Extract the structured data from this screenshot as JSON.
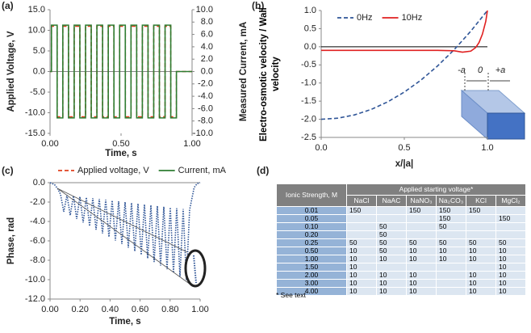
{
  "panel_labels": [
    "(a)",
    "(b)",
    "(c)",
    "(d)"
  ],
  "chart_data": [
    {
      "type": "line",
      "legend": "bottom",
      "xlabel": "Time, s",
      "ylabel": "Applied Voltage, V",
      "y2label": "Measured Current, mA",
      "x": [
        0,
        0.01,
        0.01,
        0.05,
        0.05,
        0.09,
        0.09,
        0.13,
        0.13,
        0.17,
        0.17,
        0.21,
        0.21,
        0.25,
        0.25,
        0.29,
        0.29,
        0.33,
        0.33,
        0.37,
        0.37,
        0.41,
        0.41,
        0.45,
        0.45,
        0.49,
        0.49,
        0.53,
        0.53,
        0.57,
        0.57,
        0.61,
        0.61,
        0.65,
        0.65,
        0.69,
        0.69,
        0.73,
        0.73,
        0.77,
        0.77,
        0.81,
        0.81,
        0.85,
        0.85,
        0.89,
        0.89,
        1.0
      ],
      "xlim": [
        0,
        1
      ],
      "xticks": [
        {
          "value": 0,
          "label": "0.00"
        },
        {
          "value": 0.5,
          "label": "0.50"
        },
        {
          "value": 1,
          "label": "1.00"
        }
      ],
      "ylim": [
        -15,
        15
      ],
      "yticks": [
        {
          "value": -15,
          "label": "-15.0"
        },
        {
          "value": -10,
          "label": "-10.0"
        },
        {
          "value": -5,
          "label": "-5.0"
        },
        {
          "value": 0,
          "label": "0.0"
        },
        {
          "value": 5,
          "label": "5.0"
        },
        {
          "value": 10,
          "label": "10.0"
        },
        {
          "value": 15,
          "label": "15.0"
        }
      ],
      "y2lim": [
        -10,
        10
      ],
      "y2ticks": [
        {
          "value": -10,
          "label": "-10.0"
        },
        {
          "value": -8,
          "label": "-8.0"
        },
        {
          "value": -6,
          "label": "-6.0"
        },
        {
          "value": -4,
          "label": "-4.0"
        },
        {
          "value": -2,
          "label": "-2.0"
        },
        {
          "value": 0,
          "label": "0.0"
        },
        {
          "value": 2,
          "label": "2.0"
        },
        {
          "value": 4,
          "label": "4.0"
        },
        {
          "value": 6,
          "label": "6.0"
        },
        {
          "value": 8,
          "label": "8.0"
        },
        {
          "value": 10,
          "label": "10.0"
        }
      ],
      "series": [
        {
          "name": "Applied voltage, V",
          "color": "#e0401f",
          "style": "dashed",
          "values": [
            0,
            0,
            11,
            11,
            -11,
            -11,
            11,
            11,
            -11,
            -11,
            11,
            11,
            -11,
            -11,
            11,
            11,
            -11,
            -11,
            11,
            11,
            -11,
            -11,
            11,
            11,
            -11,
            -11,
            11,
            11,
            -11,
            -11,
            11,
            11,
            -11,
            -11,
            11,
            11,
            -11,
            -11,
            11,
            11,
            -11,
            -11,
            11,
            11,
            -11,
            -11,
            0,
            0
          ]
        },
        {
          "name": "Current, mA",
          "color": "#2e7d32",
          "style": "solid",
          "axis": "y2",
          "values": [
            0,
            0,
            7.5,
            7.5,
            -7.5,
            -7.5,
            7.5,
            7.5,
            -7.5,
            -7.5,
            7.5,
            7.5,
            -7.5,
            -7.5,
            7.5,
            7.5,
            -7.5,
            -7.5,
            7.5,
            7.5,
            -7.5,
            -7.5,
            7.5,
            7.5,
            -7.5,
            -7.5,
            7.5,
            7.5,
            -7.5,
            -7.5,
            7.5,
            7.5,
            -7.5,
            -7.5,
            7.5,
            7.5,
            -7.5,
            -7.5,
            7.5,
            7.5,
            -7.5,
            -7.5,
            7.5,
            7.5,
            -7.5,
            -7.5,
            0,
            0
          ]
        }
      ]
    },
    {
      "type": "line",
      "legend": "top",
      "xlabel": "x/|a|",
      "ylabel": "Electro-osmotic velocity / Wall velocity",
      "annotations": [
        "-a",
        "0",
        "+a"
      ],
      "xlim": [
        0,
        1
      ],
      "xticks": [
        {
          "value": 0,
          "label": "0.0"
        },
        0.5,
        {
          "value": 1,
          "label": "1.0"
        }
      ],
      "ylim": [
        -2.5,
        1
      ],
      "yticks": [
        -2.5,
        {
          "value": -2,
          "label": "-2.0"
        },
        -1.5,
        {
          "value": -1,
          "label": "-1.0"
        },
        -0.5,
        {
          "value": 0,
          "label": "0.0"
        },
        0.5,
        {
          "value": 1,
          "label": "1.0"
        }
      ],
      "series": [
        {
          "name": "0Hz",
          "color": "#2f5597",
          "style": "dashed",
          "x": [
            0,
            0.1,
            0.2,
            0.3,
            0.4,
            0.5,
            0.6,
            0.7,
            0.8,
            0.9,
            1.0
          ],
          "values": [
            -2,
            -1.97,
            -1.88,
            -1.73,
            -1.52,
            -1.25,
            -0.92,
            -0.53,
            -0.08,
            0.43,
            1.0
          ]
        },
        {
          "name": "10Hz",
          "color": "#e02020",
          "style": "solid",
          "x": [
            0,
            0.2,
            0.4,
            0.6,
            0.7,
            0.8,
            0.85,
            0.9,
            0.93,
            0.95,
            0.97,
            0.99,
            1.0
          ],
          "values": [
            -0.1,
            -0.1,
            -0.1,
            -0.1,
            -0.1,
            -0.11,
            -0.15,
            -0.12,
            -0.02,
            0.12,
            0.35,
            0.7,
            1.0
          ]
        }
      ]
    },
    {
      "type": "line",
      "xlabel": "Time, s",
      "ylabel": "Phase, rad",
      "color": "#2f5597",
      "style": "dotted",
      "xlim": [
        0,
        1
      ],
      "xticks": [
        {
          "value": 0,
          "label": "0.00"
        },
        {
          "value": 0.2,
          "label": "0.20"
        },
        {
          "value": 0.4,
          "label": "0.40"
        },
        {
          "value": 0.6,
          "label": "0.60"
        },
        {
          "value": 0.8,
          "label": "0.80"
        },
        {
          "value": 1,
          "label": "1.00"
        }
      ],
      "ylim": [
        -12,
        0
      ],
      "yticks": [
        {
          "value": -12,
          "label": "-12.0"
        },
        {
          "value": -10,
          "label": "-10.0"
        },
        {
          "value": -8,
          "label": "-8.0"
        },
        {
          "value": -6,
          "label": "-6.0"
        },
        {
          "value": -4,
          "label": "-4.0"
        },
        {
          "value": -2,
          "label": "-2.0"
        },
        {
          "value": 0,
          "label": "0.0"
        }
      ],
      "x": [
        0,
        0.03,
        0.05,
        0.07,
        0.0915,
        0.113,
        0.1345,
        0.156,
        0.1775,
        0.199,
        0.2205,
        0.242,
        0.2635,
        0.285,
        0.3065,
        0.328,
        0.3495,
        0.371,
        0.3925,
        0.414,
        0.4355,
        0.457,
        0.4785,
        0.5,
        0.5215,
        0.543,
        0.5645,
        0.586,
        0.6075,
        0.629,
        0.6505,
        0.672,
        0.6935,
        0.715,
        0.7365,
        0.758,
        0.7795,
        0.801,
        0.8225,
        0.844,
        0.8655,
        0.887,
        0.9085,
        0.93,
        0.96,
        0.98,
        1.0
      ],
      "values": [
        0,
        -0.2,
        -0.6,
        -1.2,
        -3.0,
        -1.28,
        -3.37,
        -1.36,
        -3.74,
        -1.44,
        -4.11,
        -1.52,
        -4.48,
        -1.6,
        -4.85,
        -1.68,
        -5.22,
        -1.76,
        -5.59,
        -1.84,
        -5.96,
        -1.92,
        -6.33,
        -2.0,
        -6.7,
        -2.08,
        -7.07,
        -2.16,
        -7.44,
        -2.24,
        -7.81,
        -2.32,
        -8.18,
        -2.4,
        -8.55,
        -2.48,
        -8.92,
        -2.56,
        -9.29,
        -2.64,
        -9.66,
        -2.72,
        -10.03,
        -2.8,
        -0.5,
        -0.1,
        0
      ]
    }
  ],
  "table": {
    "header": "Ionic Strength, M",
    "group_header": "Applied starting voltage*",
    "columns": [
      "NaCl",
      "NaAC",
      "NaNO₃",
      "Na₂CO₃",
      "KCl",
      "MgCl₂"
    ],
    "rows": [
      [
        "0.01",
        "150",
        null,
        "150",
        "150",
        "150",
        null
      ],
      [
        "0.05",
        null,
        null,
        null,
        "150",
        null,
        "150"
      ],
      [
        "0.10",
        null,
        "50",
        null,
        "50",
        null,
        null
      ],
      [
        "0.20",
        null,
        "50",
        null,
        null,
        null,
        null
      ],
      [
        "0.25",
        "50",
        "50",
        "50",
        "50",
        "50",
        "50"
      ],
      [
        "0.50",
        "10",
        "50",
        "10",
        "10",
        "10",
        "10"
      ],
      [
        "1.00",
        "10",
        "10",
        "10",
        "10",
        "10",
        "10"
      ],
      [
        "1.50",
        "10",
        null,
        null,
        null,
        null,
        "10"
      ],
      [
        "2.00",
        "10",
        "10",
        "10",
        null,
        "10",
        "10"
      ],
      [
        "3.00",
        "10",
        "10",
        "10",
        null,
        "10",
        "10"
      ],
      [
        "4.00",
        "10",
        "10",
        "10",
        null,
        "10",
        "10"
      ]
    ],
    "footnote": "* See text"
  }
}
